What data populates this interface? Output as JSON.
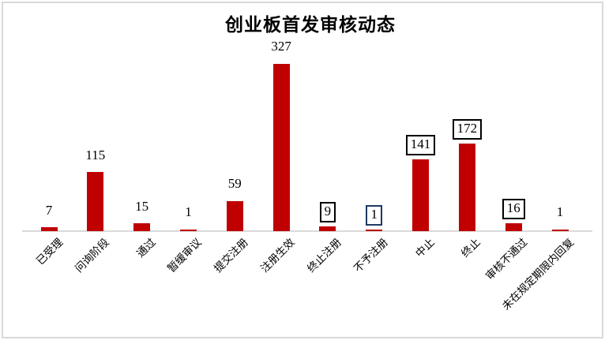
{
  "header": {
    "title": "创业板首发审核动态"
  },
  "colors": {
    "bar": "#C00000",
    "axis_line": "#DADADA",
    "outer_border": "#D9D9D9",
    "label_box_black": "#000000",
    "label_box_navy": "#1F3864",
    "text": "#000000",
    "background": "#FFFFFF"
  },
  "chart_data": {
    "type": "bar",
    "title": "创业板首发审核动态",
    "categories": [
      "已受理",
      "问询阶段",
      "通过",
      "暂缓审议",
      "提交注册",
      "注册生效",
      "终止注册",
      "不予注册",
      "中止",
      "终止",
      "审核不通过",
      "未在规定期限内回复"
    ],
    "values": [
      7,
      115,
      15,
      1,
      59,
      327,
      9,
      1,
      141,
      172,
      16,
      1
    ],
    "data_labels_shown": [
      7,
      115,
      15,
      1,
      59,
      327,
      9,
      1,
      141,
      172,
      16,
      1
    ],
    "boxed_labels": [
      false,
      false,
      false,
      false,
      false,
      false,
      true,
      true,
      true,
      true,
      true,
      false
    ],
    "box_border_colors": [
      null,
      null,
      null,
      null,
      null,
      null,
      "#000000",
      "#1F3864",
      "#000000",
      "#000000",
      "#000000",
      null
    ],
    "bar_color": "#C00000",
    "xlabel": "",
    "ylabel": "",
    "ylim": [
      0,
      350
    ],
    "grid": false,
    "legend": false,
    "y_axis_shown": false,
    "category_label_rotation_deg": 45
  }
}
